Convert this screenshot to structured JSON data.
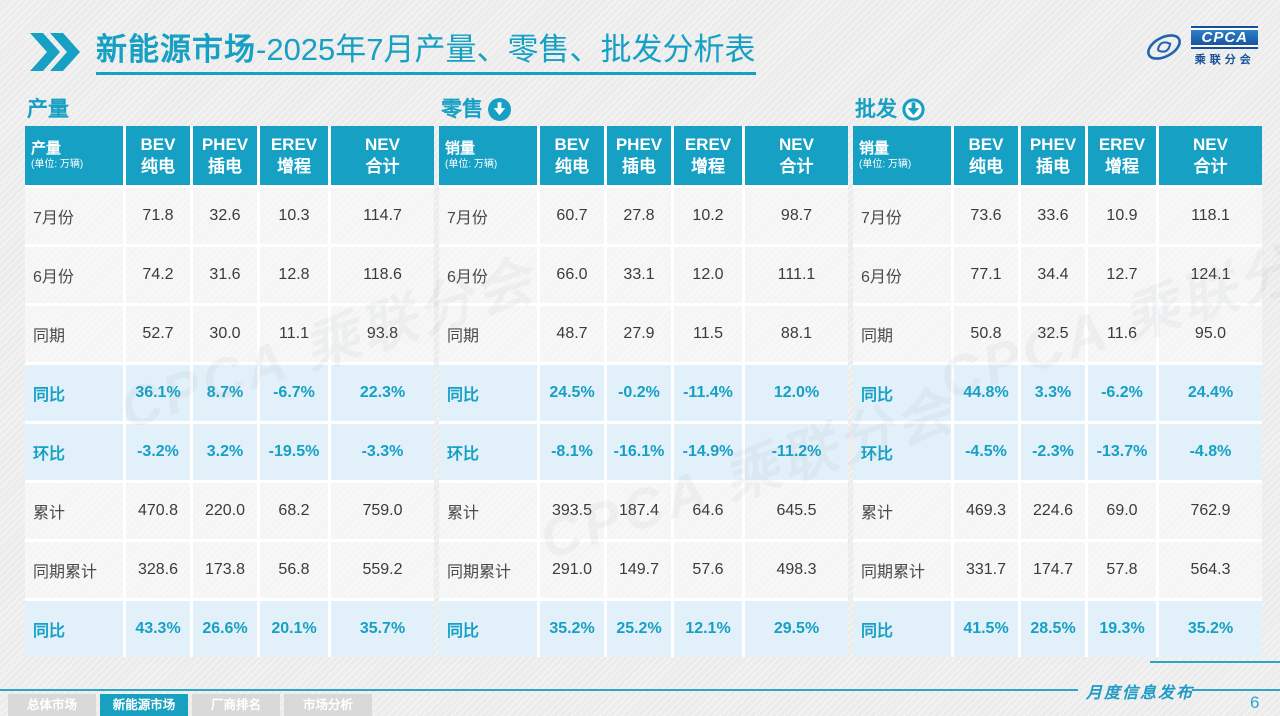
{
  "title": {
    "main": "新能源市场",
    "rest": "-2025年7月产量、零售、批发分析表"
  },
  "logo": {
    "acronym": "CPCA",
    "name": "乘联分会",
    "watermark": "CPCA 乘联分会"
  },
  "colors": {
    "accent": "#16A0C4",
    "highlight_bg": "#E2F1F9",
    "page_bg": "#ECECEC"
  },
  "unit_note": "(单位: 万辆)",
  "columns": [
    {
      "code": "BEV",
      "zh": "纯电"
    },
    {
      "code": "PHEV",
      "zh": "插电"
    },
    {
      "code": "EREV",
      "zh": "增程"
    },
    {
      "code": "NEV",
      "zh": "合计"
    }
  ],
  "tables": [
    {
      "id": "production",
      "section": "产量",
      "icon": null,
      "corner_label": "产量",
      "rows": [
        {
          "label": "7月份",
          "highlight": false,
          "values": [
            "71.8",
            "32.6",
            "10.3",
            "114.7"
          ]
        },
        {
          "label": "6月份",
          "highlight": false,
          "values": [
            "74.2",
            "31.6",
            "12.8",
            "118.6"
          ]
        },
        {
          "label": "同期",
          "highlight": false,
          "values": [
            "52.7",
            "30.0",
            "11.1",
            "93.8"
          ]
        },
        {
          "label": "同比",
          "highlight": true,
          "values": [
            "36.1%",
            "8.7%",
            "-6.7%",
            "22.3%"
          ]
        },
        {
          "label": "环比",
          "highlight": true,
          "values": [
            "-3.2%",
            "3.2%",
            "-19.5%",
            "-3.3%"
          ]
        },
        {
          "label": "累计",
          "highlight": false,
          "values": [
            "470.8",
            "220.0",
            "68.2",
            "759.0"
          ]
        },
        {
          "label": "同期累计",
          "highlight": false,
          "values": [
            "328.6",
            "173.8",
            "56.8",
            "559.2"
          ]
        },
        {
          "label": "同比",
          "highlight": true,
          "values": [
            "43.3%",
            "26.6%",
            "20.1%",
            "35.7%"
          ]
        }
      ]
    },
    {
      "id": "retail",
      "section": "零售",
      "icon": "arrow-down-filled",
      "corner_label": "销量",
      "rows": [
        {
          "label": "7月份",
          "highlight": false,
          "values": [
            "60.7",
            "27.8",
            "10.2",
            "98.7"
          ]
        },
        {
          "label": "6月份",
          "highlight": false,
          "values": [
            "66.0",
            "33.1",
            "12.0",
            "111.1"
          ]
        },
        {
          "label": "同期",
          "highlight": false,
          "values": [
            "48.7",
            "27.9",
            "11.5",
            "88.1"
          ]
        },
        {
          "label": "同比",
          "highlight": true,
          "values": [
            "24.5%",
            "-0.2%",
            "-11.4%",
            "12.0%"
          ]
        },
        {
          "label": "环比",
          "highlight": true,
          "values": [
            "-8.1%",
            "-16.1%",
            "-14.9%",
            "-11.2%"
          ]
        },
        {
          "label": "累计",
          "highlight": false,
          "values": [
            "393.5",
            "187.4",
            "64.6",
            "645.5"
          ]
        },
        {
          "label": "同期累计",
          "highlight": false,
          "values": [
            "291.0",
            "149.7",
            "57.6",
            "498.3"
          ]
        },
        {
          "label": "同比",
          "highlight": true,
          "values": [
            "35.2%",
            "25.2%",
            "12.1%",
            "29.5%"
          ]
        }
      ]
    },
    {
      "id": "wholesale",
      "section": "批发",
      "icon": "arrow-down-ring",
      "corner_label": "销量",
      "rows": [
        {
          "label": "7月份",
          "highlight": false,
          "values": [
            "73.6",
            "33.6",
            "10.9",
            "118.1"
          ]
        },
        {
          "label": "6月份",
          "highlight": false,
          "values": [
            "77.1",
            "34.4",
            "12.7",
            "124.1"
          ]
        },
        {
          "label": "同期",
          "highlight": false,
          "values": [
            "50.8",
            "32.5",
            "11.6",
            "95.0"
          ]
        },
        {
          "label": "同比",
          "highlight": true,
          "values": [
            "44.8%",
            "3.3%",
            "-6.2%",
            "24.4%"
          ]
        },
        {
          "label": "环比",
          "highlight": true,
          "values": [
            "-4.5%",
            "-2.3%",
            "-13.7%",
            "-4.8%"
          ]
        },
        {
          "label": "累计",
          "highlight": false,
          "values": [
            "469.3",
            "224.6",
            "69.0",
            "762.9"
          ]
        },
        {
          "label": "同期累计",
          "highlight": false,
          "values": [
            "331.7",
            "174.7",
            "57.8",
            "564.3"
          ]
        },
        {
          "label": "同比",
          "highlight": true,
          "values": [
            "41.5%",
            "28.5%",
            "19.3%",
            "35.2%"
          ]
        }
      ]
    }
  ],
  "footer": {
    "note": "月度信息发布",
    "page": "6",
    "tabs": [
      {
        "label": "总体市场",
        "active": false
      },
      {
        "label": "新能源市场",
        "active": true
      },
      {
        "label": "厂商排名",
        "active": false
      },
      {
        "label": "市场分析",
        "active": false
      }
    ]
  }
}
